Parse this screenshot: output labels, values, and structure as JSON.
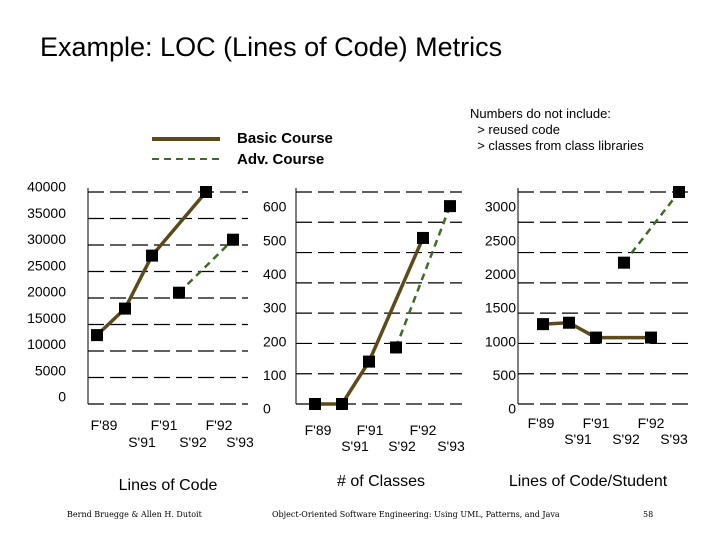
{
  "title": "Example: LOC (Lines of Code) Metrics",
  "note": "Numbers do not include:\n  > reused code\n  > classes from class libraries",
  "legend": {
    "basic": "Basic Course",
    "adv": "Adv. Course"
  },
  "footer": {
    "authors": "Bernd Bruegge & Allen H. Dutoit",
    "book": "Object-Oriented Software Engineering: Using UML, Patterns, and Java",
    "page": "58"
  },
  "colors": {
    "basic": "#3b5a1e",
    "basic_alt": "#5c4a1a",
    "adv": "#3f6b26",
    "marker": "#000000",
    "grid": "#000000"
  },
  "chart_data": [
    {
      "type": "line",
      "xlabel": "Lines of Code",
      "ytick_labels": [
        "0",
        "5000",
        "10000",
        "15000",
        "20000",
        "25000",
        "30000",
        "35000",
        "40000"
      ],
      "ylim": [
        0,
        40000
      ],
      "x_tick_rows": [
        [
          "F'89",
          "F'91",
          "F'92"
        ],
        [
          "S'91",
          "S'92",
          "S'93"
        ]
      ],
      "series": [
        {
          "style": "solid",
          "x": [
            "F'89",
            "S'91",
            "F'91",
            "F'92"
          ],
          "values": [
            13000,
            18000,
            28000,
            40000
          ]
        },
        {
          "style": "dashed",
          "x": [
            "S'92",
            "S'93"
          ],
          "values": [
            21000,
            31000
          ]
        }
      ]
    },
    {
      "type": "line",
      "xlabel": "# of Classes",
      "ytick_labels": [
        "0",
        "100",
        "200",
        "300",
        "400",
        "500",
        "600"
      ],
      "ylim": [
        0,
        600
      ],
      "x_tick_rows": [
        [
          "F'89",
          "F'91",
          "F'92"
        ],
        [
          "S'91",
          "S'92",
          "S'93"
        ]
      ],
      "series": [
        {
          "style": "solid",
          "x": [
            "F'89",
            "S'91",
            "F'91",
            "F'92"
          ],
          "values": [
            0,
            0,
            120,
            470
          ]
        },
        {
          "style": "dashed",
          "x": [
            "S'92",
            "S'93"
          ],
          "values": [
            160,
            560
          ]
        }
      ]
    },
    {
      "type": "line",
      "xlabel": "Lines of Code/Student",
      "ytick_labels": [
        "0",
        "500",
        "1000",
        "1500",
        "2000",
        "2500",
        "3000"
      ],
      "ylim": [
        0,
        3000
      ],
      "x_tick_rows": [
        [
          "F'89",
          "F'91",
          "F'92"
        ],
        [
          "S'91",
          "S'92",
          "S'93"
        ]
      ],
      "series": [
        {
          "style": "solid",
          "x": [
            "F'89",
            "S'91",
            "F'91",
            "F'92"
          ],
          "values": [
            1130,
            1150,
            940,
            940
          ]
        },
        {
          "style": "dashed",
          "x": [
            "S'92",
            "S'93"
          ],
          "values": [
            2000,
            3000
          ]
        }
      ]
    }
  ]
}
